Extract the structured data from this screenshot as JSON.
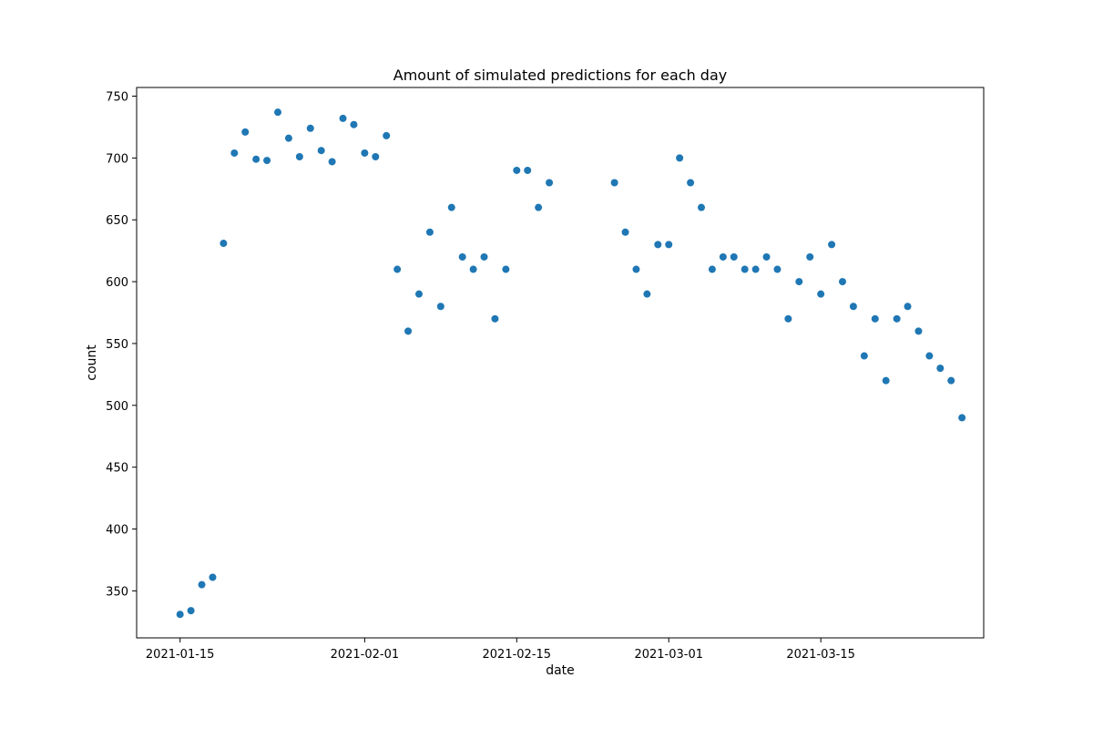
{
  "chart_data": {
    "type": "scatter",
    "title": "Amount of simulated predictions for each day",
    "xlabel": "date",
    "ylabel": "count",
    "xlim": [
      "2021-01-11",
      "2021-03-30"
    ],
    "ylim": [
      312,
      757
    ],
    "grid": false,
    "legend": "none",
    "x_ticks": [
      "2021-01-15",
      "2021-02-01",
      "2021-02-15",
      "2021-03-01",
      "2021-03-15"
    ],
    "y_ticks": [
      350,
      400,
      450,
      500,
      550,
      600,
      650,
      700,
      750
    ],
    "marker_color": "#1f77b4",
    "series": [
      {
        "x": [
          "2021-01-15",
          "2021-01-16",
          "2021-01-17",
          "2021-01-18",
          "2021-01-19",
          "2021-01-20",
          "2021-01-21",
          "2021-01-22",
          "2021-01-23",
          "2021-01-24",
          "2021-01-25",
          "2021-01-26",
          "2021-01-27",
          "2021-01-28",
          "2021-01-29",
          "2021-01-30",
          "2021-01-31",
          "2021-02-01",
          "2021-02-02",
          "2021-02-03",
          "2021-02-04",
          "2021-02-05",
          "2021-02-06",
          "2021-02-07",
          "2021-02-08",
          "2021-02-09",
          "2021-02-10",
          "2021-02-11",
          "2021-02-12",
          "2021-02-13",
          "2021-02-14",
          "2021-02-15",
          "2021-02-16",
          "2021-02-17",
          "2021-02-18",
          "2021-02-24",
          "2021-02-25",
          "2021-02-26",
          "2021-02-27",
          "2021-02-28",
          "2021-03-01",
          "2021-03-02",
          "2021-03-03",
          "2021-03-04",
          "2021-03-05",
          "2021-03-06",
          "2021-03-07",
          "2021-03-08",
          "2021-03-09",
          "2021-03-10",
          "2021-03-11",
          "2021-03-12",
          "2021-03-13",
          "2021-03-14",
          "2021-03-15",
          "2021-03-16",
          "2021-03-17",
          "2021-03-18",
          "2021-03-19",
          "2021-03-20",
          "2021-03-21",
          "2021-03-22",
          "2021-03-23",
          "2021-03-24",
          "2021-03-25",
          "2021-03-26",
          "2021-03-27",
          "2021-03-28"
        ],
        "y": [
          331,
          334,
          355,
          361,
          631,
          704,
          721,
          699,
          698,
          737,
          716,
          701,
          724,
          706,
          697,
          732,
          727,
          704,
          701,
          718,
          610,
          560,
          590,
          640,
          580,
          660,
          620,
          610,
          620,
          570,
          610,
          690,
          690,
          660,
          680,
          680,
          640,
          610,
          590,
          630,
          630,
          700,
          680,
          660,
          610,
          620,
          620,
          610,
          610,
          620,
          610,
          570,
          600,
          620,
          590,
          630,
          600,
          580,
          540,
          570,
          520,
          570,
          580,
          560,
          540,
          530,
          520,
          490
        ]
      }
    ]
  }
}
